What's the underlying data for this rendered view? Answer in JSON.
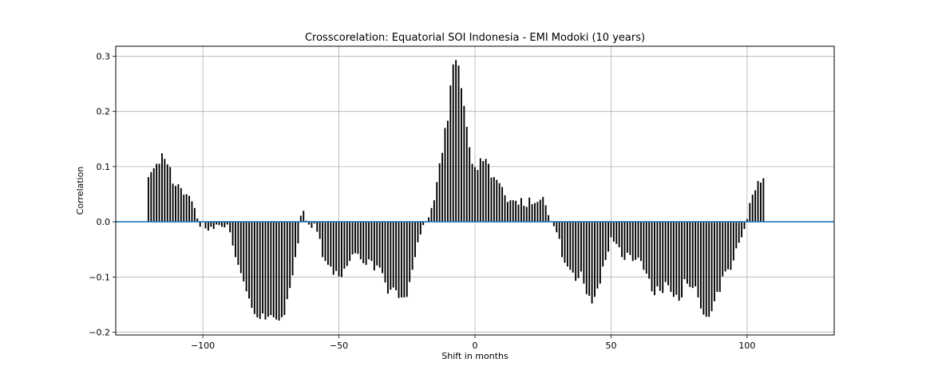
{
  "chart_data": {
    "type": "bar",
    "title": "Crosscorelation: Equatorial SOI Indonesia - EMI Modoki (10 years)",
    "xlabel": "Shift in months",
    "ylabel": "Correlation",
    "xlim": [
      -132,
      132
    ],
    "ylim": [
      -0.205,
      0.318
    ],
    "xticks": [
      -100,
      -50,
      0,
      50,
      100
    ],
    "xtick_labels": [
      "−100",
      "−50",
      "0",
      "50",
      "100"
    ],
    "yticks": [
      -0.2,
      -0.1,
      0.0,
      0.1,
      0.2,
      0.3
    ],
    "ytick_labels": [
      "−0.2",
      "−0.1",
      "0.0",
      "0.1",
      "0.2",
      "0.3"
    ],
    "grid": true,
    "bar_color": "#000000",
    "baseline_color": "#1f77b4",
    "x_start": -120,
    "x_end": 120,
    "values": [
      0.081,
      0.09,
      0.097,
      0.105,
      0.105,
      0.124,
      0.114,
      0.104,
      0.099,
      0.069,
      0.065,
      0.068,
      0.061,
      0.049,
      0.05,
      0.047,
      0.037,
      0.025,
      0.006,
      -0.009,
      0.0,
      -0.012,
      -0.016,
      -0.009,
      -0.013,
      -0.005,
      -0.006,
      -0.009,
      -0.01,
      -0.005,
      -0.019,
      -0.043,
      -0.064,
      -0.078,
      -0.093,
      -0.108,
      -0.126,
      -0.139,
      -0.156,
      -0.167,
      -0.173,
      -0.176,
      -0.166,
      -0.177,
      -0.172,
      -0.169,
      -0.173,
      -0.177,
      -0.179,
      -0.173,
      -0.169,
      -0.14,
      -0.12,
      -0.097,
      -0.064,
      -0.039,
      0.011,
      0.02,
      0.002,
      -0.005,
      -0.011,
      -0.003,
      -0.018,
      -0.031,
      -0.064,
      -0.071,
      -0.078,
      -0.081,
      -0.096,
      -0.089,
      -0.099,
      -0.1,
      -0.085,
      -0.08,
      -0.071,
      -0.059,
      -0.057,
      -0.058,
      -0.068,
      -0.075,
      -0.078,
      -0.068,
      -0.071,
      -0.088,
      -0.079,
      -0.083,
      -0.093,
      -0.11,
      -0.13,
      -0.123,
      -0.119,
      -0.124,
      -0.138,
      -0.137,
      -0.137,
      -0.136,
      -0.109,
      -0.087,
      -0.064,
      -0.037,
      -0.023,
      -0.006,
      0.0,
      0.008,
      0.025,
      0.039,
      0.072,
      0.106,
      0.125,
      0.17,
      0.183,
      0.247,
      0.285,
      0.293,
      0.283,
      0.242,
      0.21,
      0.172,
      0.135,
      0.105,
      0.099,
      0.094,
      0.115,
      0.11,
      0.114,
      0.105,
      0.08,
      0.081,
      0.076,
      0.07,
      0.063,
      0.048,
      0.036,
      0.039,
      0.039,
      0.038,
      0.031,
      0.043,
      0.029,
      0.027,
      0.044,
      0.032,
      0.034,
      0.036,
      0.04,
      0.045,
      0.03,
      0.012,
      0.0,
      -0.008,
      -0.019,
      -0.031,
      -0.064,
      -0.074,
      -0.081,
      -0.087,
      -0.092,
      -0.107,
      -0.102,
      -0.09,
      -0.112,
      -0.131,
      -0.134,
      -0.148,
      -0.136,
      -0.121,
      -0.112,
      -0.081,
      -0.069,
      -0.054,
      -0.028,
      -0.036,
      -0.04,
      -0.046,
      -0.064,
      -0.069,
      -0.056,
      -0.06,
      -0.071,
      -0.069,
      -0.065,
      -0.071,
      -0.087,
      -0.094,
      -0.103,
      -0.126,
      -0.133,
      -0.117,
      -0.125,
      -0.129,
      -0.109,
      -0.115,
      -0.127,
      -0.136,
      -0.132,
      -0.143,
      -0.137,
      -0.104,
      -0.112,
      -0.118,
      -0.12,
      -0.117,
      -0.137,
      -0.157,
      -0.168,
      -0.172,
      -0.172,
      -0.162,
      -0.144,
      -0.127,
      -0.127,
      -0.099,
      -0.09,
      -0.086,
      -0.087,
      -0.07,
      -0.048,
      -0.038,
      -0.028,
      -0.013,
      0.005,
      0.034,
      0.049,
      0.057,
      0.074,
      0.071,
      0.079
    ]
  }
}
